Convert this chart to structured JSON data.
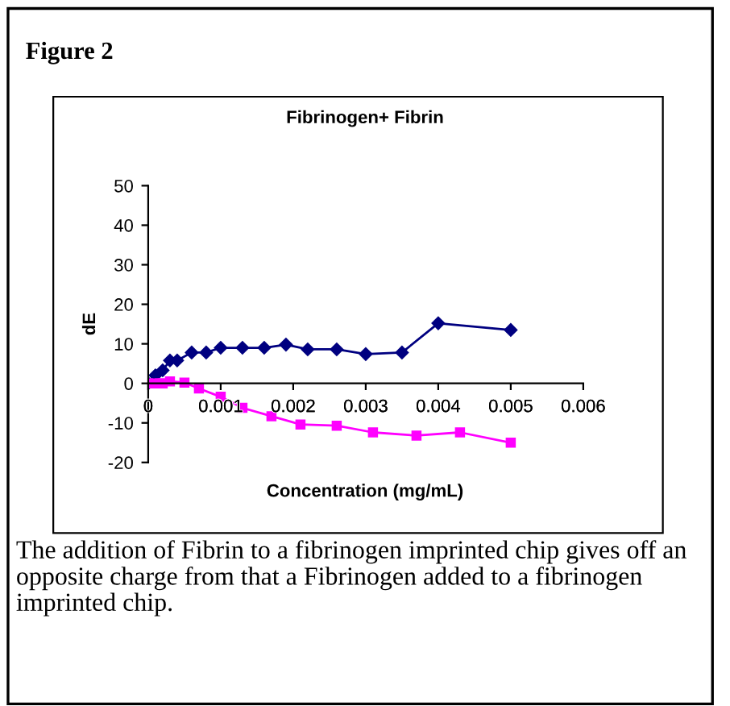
{
  "chart_data": {
    "type": "line",
    "title": "Fibrinogen+ Fibrin",
    "xlabel": "Concentration (mg/mL)",
    "ylabel": "dE",
    "annotations": [
      "Figure 2",
      "The addition of Fibrin to a fibrinogen imprinted chip gives off an opposite charge from that a Fibrinogen added to a fibrinogen imprinted chip."
    ],
    "xlim": [
      0,
      0.006
    ],
    "xticks": [
      0,
      0.001,
      0.002,
      0.003,
      0.004,
      0.005,
      0.006
    ],
    "ylim": [
      -20,
      50
    ],
    "yticks": [
      -20,
      -10,
      0,
      10,
      20,
      30,
      40,
      50
    ],
    "grid": false,
    "legend": false,
    "series": [
      {
        "color": "#000080",
        "marker": "diamond",
        "x": [
          0,
          0.0001,
          0.0002,
          0.0003,
          0.0004,
          0.0006,
          0.0008,
          0.001,
          0.0013,
          0.0016,
          0.0019,
          0.0022,
          0.0026,
          0.003,
          0.0035,
          0.004,
          0.005
        ],
        "values": [
          0,
          2,
          3.3,
          5.8,
          5.8,
          7.8,
          7.8,
          9,
          9,
          9,
          9.8,
          8.6,
          8.6,
          7.4,
          7.8,
          15.2,
          13.5
        ]
      },
      {
        "color": "#ff00ff",
        "marker": "square",
        "x": [
          0,
          0.0001,
          0.00016,
          0.0002,
          0.0003,
          0.0005,
          0.0007,
          0.001,
          0.0013,
          0.0017,
          0.0021,
          0.0026,
          0.0031,
          0.0037,
          0.0043,
          0.005
        ],
        "values": [
          0,
          0,
          0,
          0,
          0.5,
          0.2,
          -1.3,
          -3.4,
          -6.2,
          -8.3,
          -10.4,
          -10.7,
          -12.4,
          -13.2,
          -12.4,
          -15
        ]
      }
    ]
  }
}
